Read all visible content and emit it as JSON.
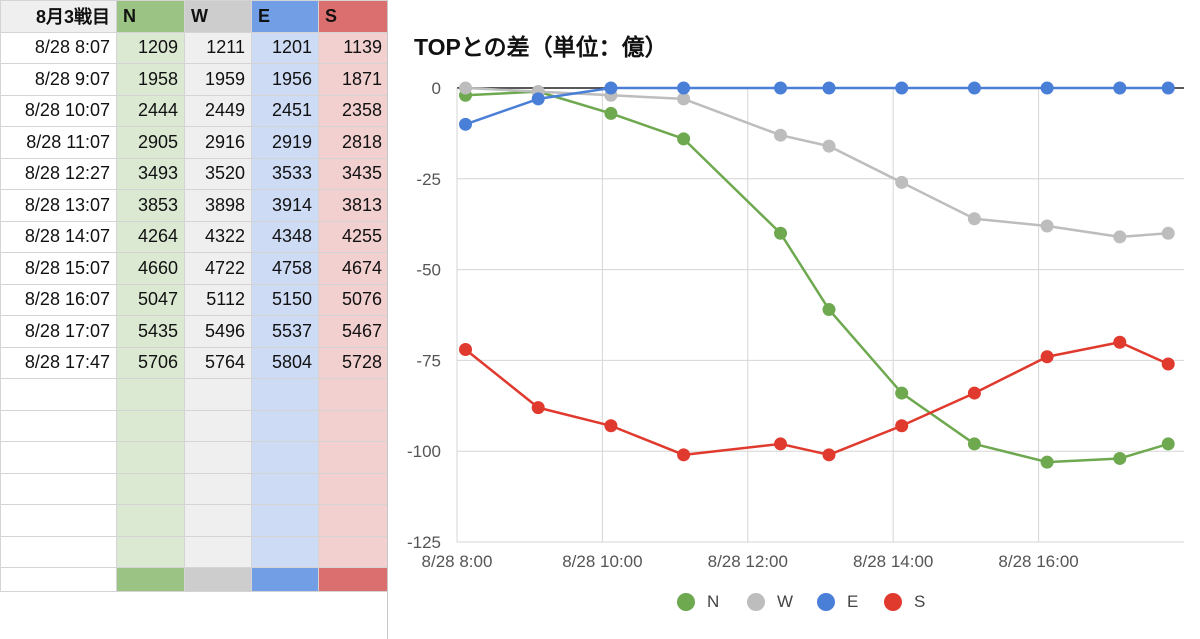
{
  "sheet": {
    "header": [
      "8月3戦目",
      "N",
      "W",
      "E",
      "S"
    ],
    "rows": [
      [
        "8/28 8:07",
        "1209",
        "1211",
        "1201",
        "1139"
      ],
      [
        "8/28 9:07",
        "1958",
        "1959",
        "1956",
        "1871"
      ],
      [
        "8/28 10:07",
        "2444",
        "2449",
        "2451",
        "2358"
      ],
      [
        "8/28 11:07",
        "2905",
        "2916",
        "2919",
        "2818"
      ],
      [
        "8/28 12:27",
        "3493",
        "3520",
        "3533",
        "3435"
      ],
      [
        "8/28 13:07",
        "3853",
        "3898",
        "3914",
        "3813"
      ],
      [
        "8/28 14:07",
        "4264",
        "4322",
        "4348",
        "4255"
      ],
      [
        "8/28 15:07",
        "4660",
        "4722",
        "4758",
        "4674"
      ],
      [
        "8/28 16:07",
        "5047",
        "5112",
        "5150",
        "5076"
      ],
      [
        "8/28 17:07",
        "5435",
        "5496",
        "5537",
        "5467"
      ],
      [
        "8/28 17:47",
        "5706",
        "5764",
        "5804",
        "5728"
      ]
    ],
    "empty_rows": 6,
    "column_colors": {
      "N": {
        "header": "#9bc384",
        "cell": "#dbe9d3"
      },
      "W": {
        "header": "#cdcdcd",
        "cell": "#efefef"
      },
      "E": {
        "header": "#729ee6",
        "cell": "#cddbf5"
      },
      "S": {
        "header": "#db6e6e",
        "cell": "#f2d0d0"
      }
    }
  },
  "chart_data": {
    "type": "line",
    "title": "TOPとの差（単位：億）",
    "xlabel": "",
    "ylabel": "",
    "x": [
      "8:07",
      "9:07",
      "10:07",
      "11:07",
      "12:27",
      "13:07",
      "14:07",
      "15:07",
      "16:07",
      "17:07",
      "17:47"
    ],
    "x_hours": [
      8.117,
      9.117,
      10.117,
      11.117,
      12.45,
      13.117,
      14.117,
      15.117,
      16.117,
      17.117,
      17.783
    ],
    "x_ticks": [
      "8/28 8:00",
      "8/28 10:00",
      "8/28 12:00",
      "8/28 14:00",
      "8/28 16:00"
    ],
    "x_tick_hours": [
      8,
      10,
      12,
      14,
      16
    ],
    "xlim_hours": [
      8,
      18
    ],
    "y_ticks": [
      0,
      -25,
      -50,
      -75,
      -100,
      -125
    ],
    "ylim": [
      -125,
      0
    ],
    "grid": true,
    "legend_position": "bottom",
    "series": [
      {
        "name": "N",
        "color": "#6ea84f",
        "values": [
          -2,
          -1,
          -7,
          -14,
          -40,
          -61,
          -84,
          -98,
          -103,
          -102,
          -98
        ]
      },
      {
        "name": "W",
        "color": "#bdbdbd",
        "values": [
          0,
          -1,
          -2,
          -3,
          -13,
          -16,
          -26,
          -36,
          -38,
          -41,
          -40
        ]
      },
      {
        "name": "E",
        "color": "#4a7fd8",
        "values": [
          -10,
          -3,
          0,
          0,
          0,
          0,
          0,
          0,
          0,
          0,
          0
        ]
      },
      {
        "name": "S",
        "color": "#e03a2e",
        "values": [
          -72,
          -88,
          -93,
          -101,
          -98,
          -101,
          -93,
          -84,
          -74,
          -70,
          -76
        ]
      }
    ]
  }
}
